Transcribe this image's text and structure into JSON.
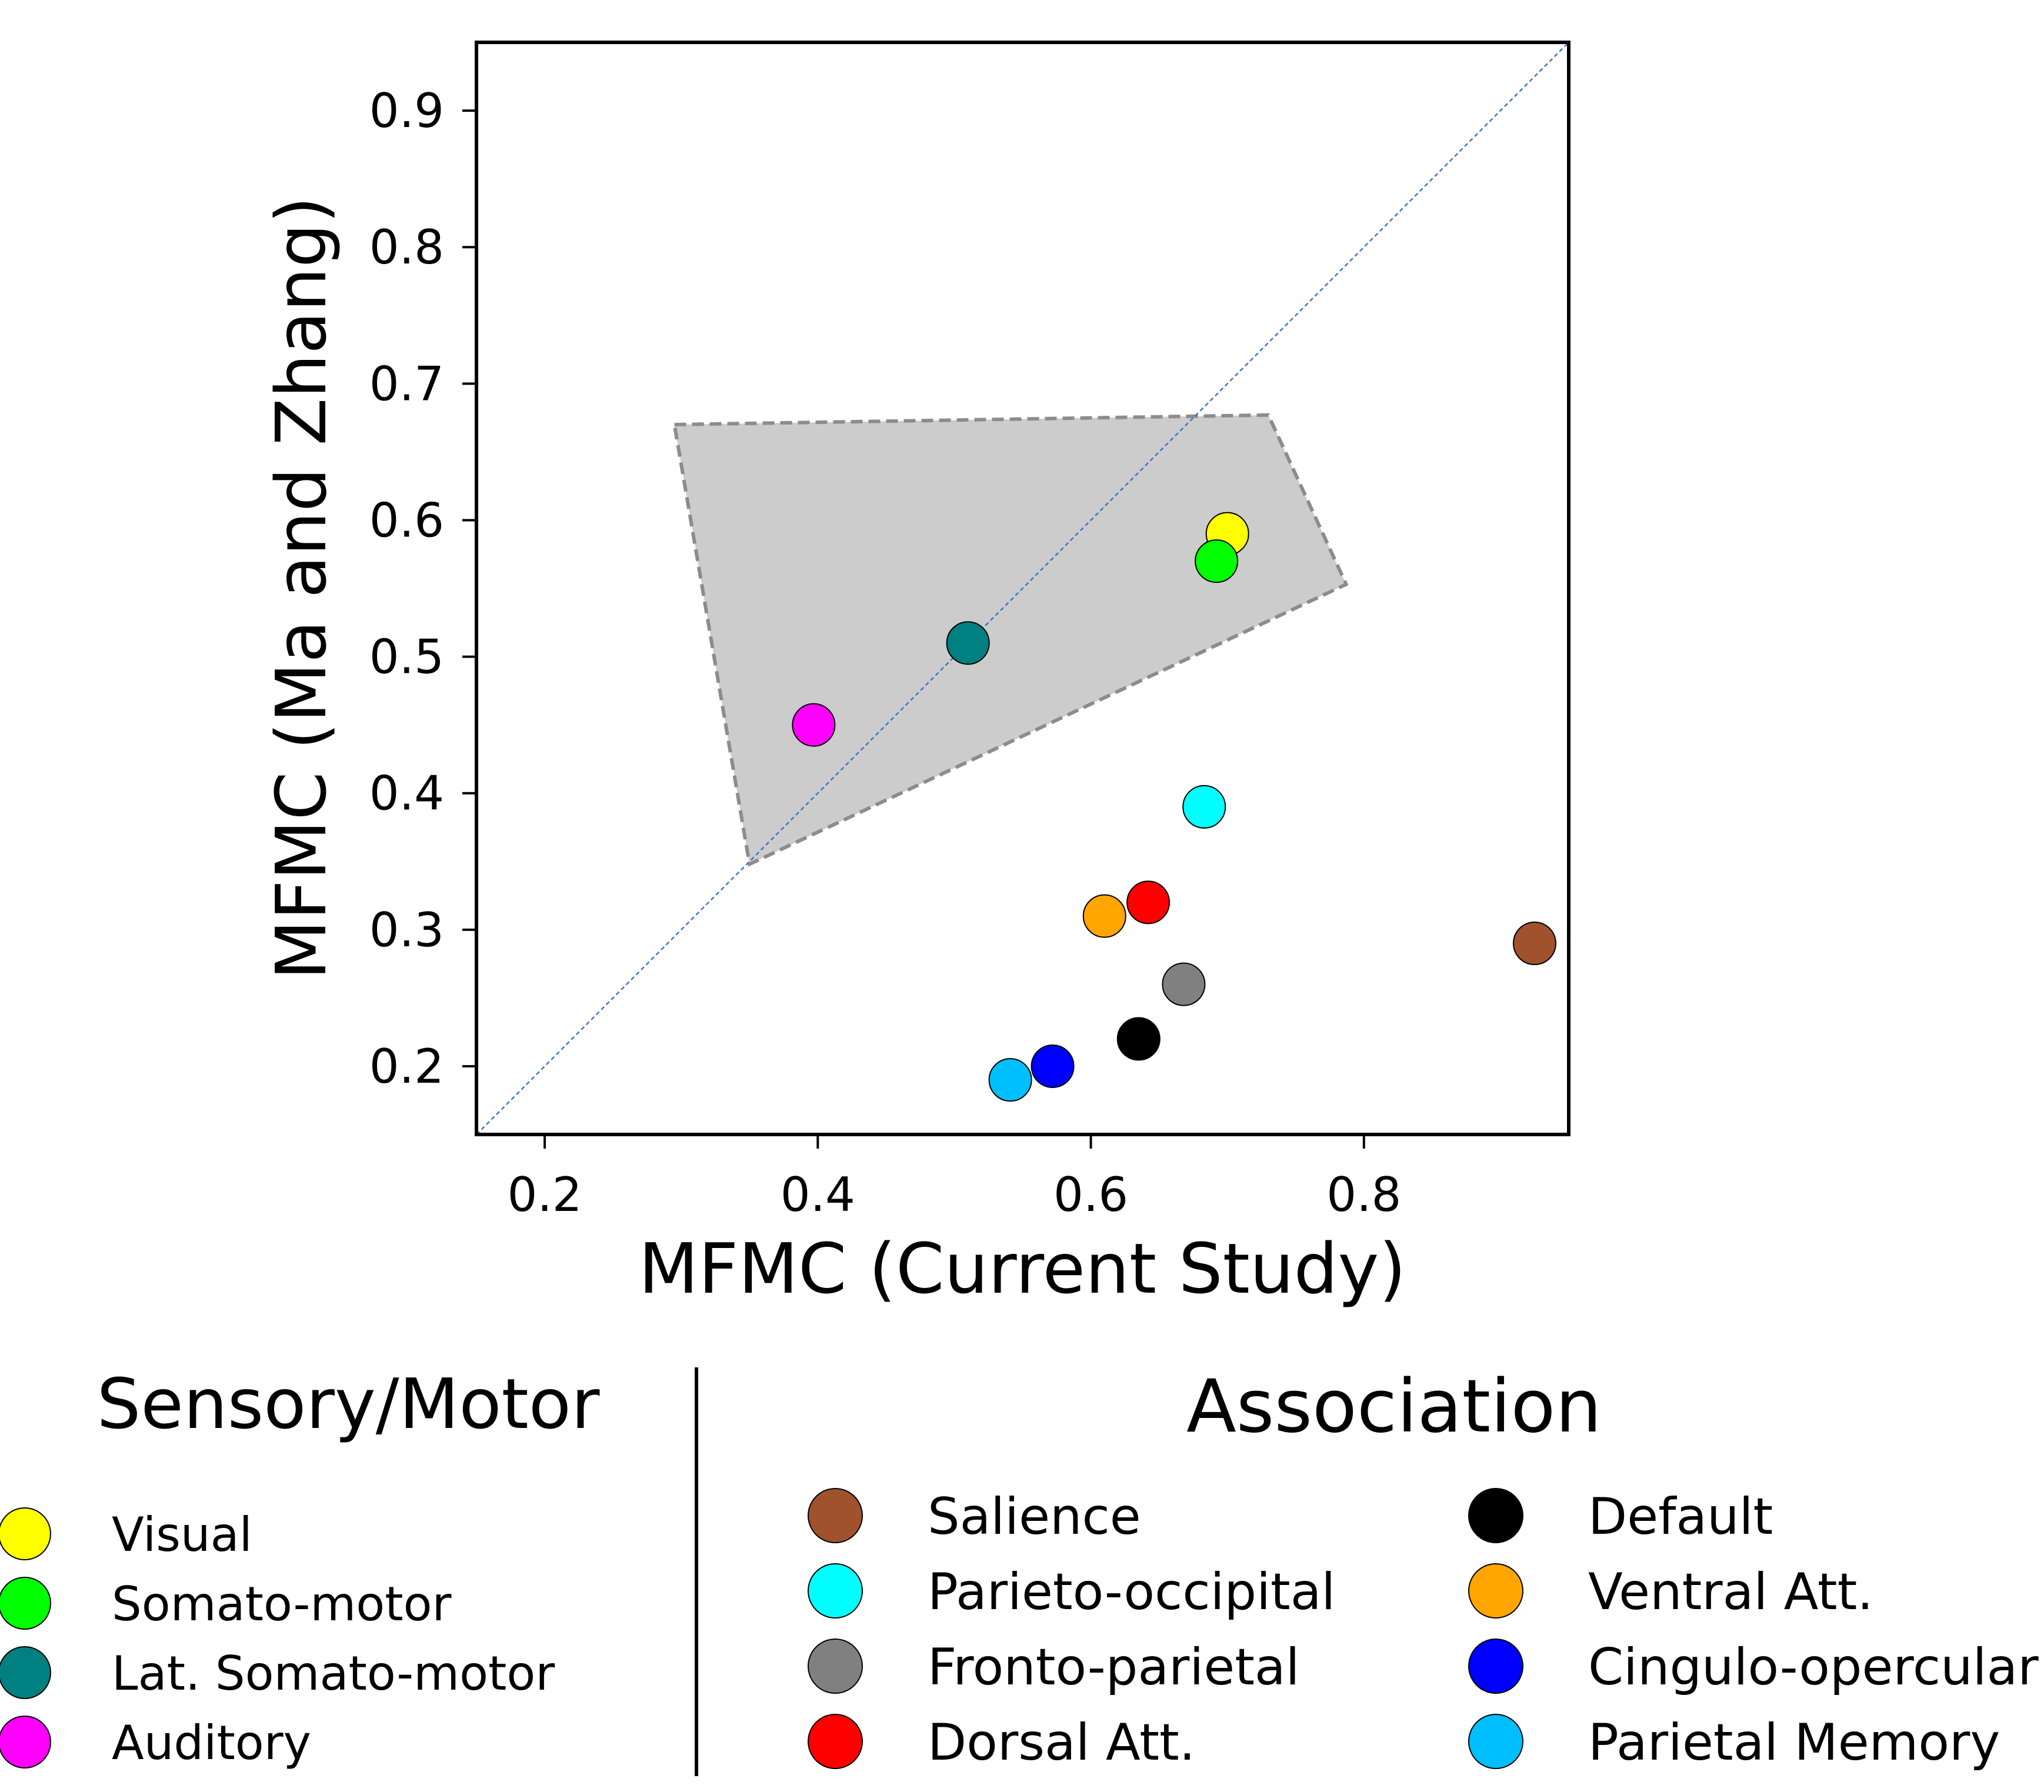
{
  "chart_data": {
    "type": "scatter",
    "title": "",
    "xlabel": "MFMC (Current Study)",
    "ylabel": "MFMC (Ma and Zhang)",
    "xlim": [
      0.15,
      0.95
    ],
    "ylim": [
      0.15,
      0.95
    ],
    "x_ticks": [
      0.2,
      0.4,
      0.6,
      0.8
    ],
    "x_tick_labels": [
      "0.2",
      "0.4",
      "0.6",
      "0.8"
    ],
    "y_ticks": [
      0.2,
      0.3,
      0.4,
      0.5,
      0.6,
      0.7,
      0.8,
      0.9
    ],
    "y_tick_labels": [
      "0.2",
      "0.3",
      "0.4",
      "0.5",
      "0.6",
      "0.7",
      "0.8",
      "0.9"
    ],
    "grid": false,
    "identity_line": true,
    "highlight_region": {
      "corners": [
        [
          0.295,
          0.67
        ],
        [
          0.73,
          0.677
        ],
        [
          0.787,
          0.553
        ],
        [
          0.35,
          0.348
        ]
      ]
    },
    "legend_groups": [
      {
        "title": "Sensory/Motor",
        "members": [
          "Visual",
          "Somato-motor",
          "Lat. Somato-motor",
          "Auditory"
        ]
      },
      {
        "title": "Association",
        "members": [
          "Salience",
          "Parieto-occipital",
          "Fronto-parietal",
          "Dorsal Att.",
          "Default",
          "Ventral Att.",
          "Cingulo-opercular",
          "Parietal Memory"
        ]
      }
    ],
    "series": [
      {
        "name": "Visual",
        "color": "#ffff00",
        "x": 0.7,
        "y": 0.59
      },
      {
        "name": "Somato-motor",
        "color": "#00ff00",
        "x": 0.692,
        "y": 0.57
      },
      {
        "name": "Lat. Somato-motor",
        "color": "#008080",
        "x": 0.51,
        "y": 0.51
      },
      {
        "name": "Auditory",
        "color": "#ff00ff",
        "x": 0.397,
        "y": 0.45
      },
      {
        "name": "Salience",
        "color": "#a0522d",
        "x": 0.925,
        "y": 0.29
      },
      {
        "name": "Parieto-occipital",
        "color": "#00ffff",
        "x": 0.683,
        "y": 0.39
      },
      {
        "name": "Fronto-parietal",
        "color": "#808080",
        "x": 0.668,
        "y": 0.26
      },
      {
        "name": "Dorsal Att.",
        "color": "#ff0000",
        "x": 0.642,
        "y": 0.32
      },
      {
        "name": "Default",
        "color": "#000000",
        "x": 0.635,
        "y": 0.22
      },
      {
        "name": "Ventral Att.",
        "color": "#ffa500",
        "x": 0.61,
        "y": 0.31
      },
      {
        "name": "Cingulo-opercular",
        "color": "#0000ff",
        "x": 0.572,
        "y": 0.2
      },
      {
        "name": "Parietal Memory",
        "color": "#00bfff",
        "x": 0.541,
        "y": 0.19
      }
    ]
  }
}
